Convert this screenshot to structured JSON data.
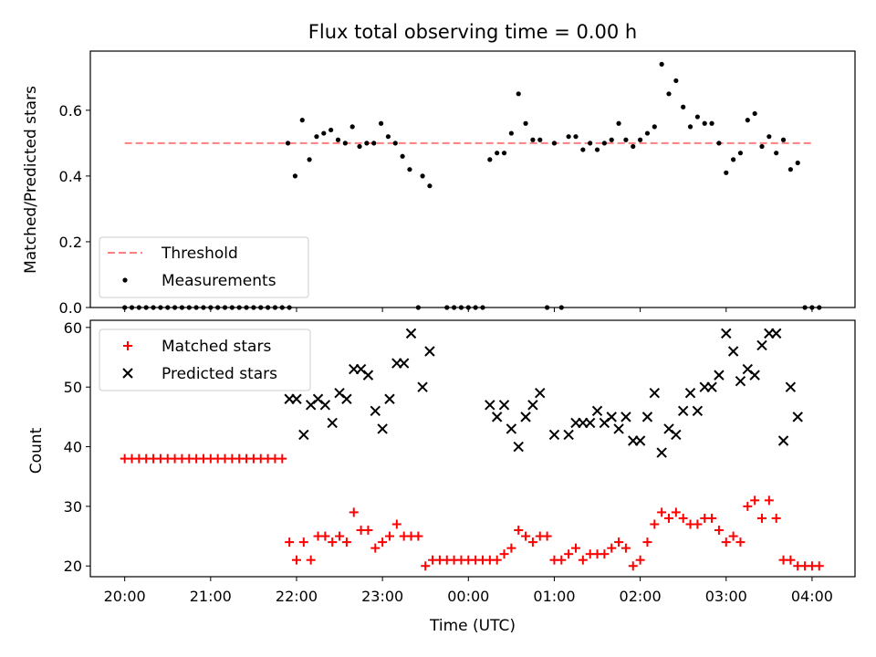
{
  "chart_data": [
    {
      "type": "scatter",
      "title": "Flux total observing time = 0.00 h",
      "xlabel": "",
      "ylabel": "Matched/Predicted stars",
      "xlim": [
        "19:36",
        "04:30"
      ],
      "ylim": [
        0,
        0.78
      ],
      "yticks": [
        "0.0",
        "0.2",
        "0.4",
        "0.6"
      ],
      "legend_position": "lower-left",
      "threshold": {
        "name": "Threshold",
        "value": 0.5,
        "x_range": [
          "20:00",
          "04:00"
        ],
        "color": "#ff7f7f"
      },
      "series": [
        {
          "name": "Measurements",
          "color": "#000000",
          "points": [
            [
              "20:00",
              0
            ],
            [
              "20:05",
              0
            ],
            [
              "20:10",
              0
            ],
            [
              "20:15",
              0
            ],
            [
              "20:20",
              0
            ],
            [
              "20:25",
              0
            ],
            [
              "20:30",
              0
            ],
            [
              "20:35",
              0
            ],
            [
              "20:40",
              0
            ],
            [
              "20:45",
              0
            ],
            [
              "20:50",
              0
            ],
            [
              "20:55",
              0
            ],
            [
              "21:00",
              0
            ],
            [
              "21:05",
              0
            ],
            [
              "21:10",
              0
            ],
            [
              "21:15",
              0
            ],
            [
              "21:20",
              0
            ],
            [
              "21:25",
              0
            ],
            [
              "21:30",
              0
            ],
            [
              "21:35",
              0
            ],
            [
              "21:40",
              0
            ],
            [
              "21:45",
              0
            ],
            [
              "21:50",
              0
            ],
            [
              "21:55",
              0
            ],
            [
              "21:54",
              0.5
            ],
            [
              "21:59",
              0.4
            ],
            [
              "22:04",
              0.57
            ],
            [
              "22:09",
              0.45
            ],
            [
              "22:14",
              0.52
            ],
            [
              "22:19",
              0.53
            ],
            [
              "22:24",
              0.54
            ],
            [
              "22:29",
              0.51
            ],
            [
              "22:34",
              0.5
            ],
            [
              "22:39",
              0.55
            ],
            [
              "22:44",
              0.49
            ],
            [
              "22:49",
              0.5
            ],
            [
              "22:54",
              0.5
            ],
            [
              "22:59",
              0.56
            ],
            [
              "23:04",
              0.52
            ],
            [
              "23:09",
              0.5
            ],
            [
              "23:14",
              0.46
            ],
            [
              "23:19",
              0.42
            ],
            [
              "23:28",
              0.4
            ],
            [
              "23:33",
              0.37
            ],
            [
              "23:25",
              0
            ],
            [
              "23:45",
              0
            ],
            [
              "23:50",
              0
            ],
            [
              "23:55",
              0
            ],
            [
              "24:00",
              0
            ],
            [
              "24:05",
              0
            ],
            [
              "24:10",
              0
            ],
            [
              "24:15",
              0.45
            ],
            [
              "24:20",
              0.47
            ],
            [
              "24:25",
              0.47
            ],
            [
              "24:30",
              0.53
            ],
            [
              "24:35",
              0.65
            ],
            [
              "24:40",
              0.56
            ],
            [
              "24:45",
              0.51
            ],
            [
              "24:50",
              0.51
            ],
            [
              "24:55",
              0
            ],
            [
              "25:00",
              0.5
            ],
            [
              "25:05",
              0
            ],
            [
              "25:10",
              0.52
            ],
            [
              "25:15",
              0.52
            ],
            [
              "25:20",
              0.48
            ],
            [
              "25:25",
              0.5
            ],
            [
              "25:30",
              0.48
            ],
            [
              "25:35",
              0.5
            ],
            [
              "25:40",
              0.51
            ],
            [
              "25:45",
              0.56
            ],
            [
              "25:50",
              0.51
            ],
            [
              "25:55",
              0.49
            ],
            [
              "26:00",
              0.51
            ],
            [
              "26:05",
              0.53
            ],
            [
              "26:10",
              0.55
            ],
            [
              "26:15",
              0.74
            ],
            [
              "26:20",
              0.65
            ],
            [
              "26:25",
              0.69
            ],
            [
              "26:30",
              0.61
            ],
            [
              "26:35",
              0.55
            ],
            [
              "26:40",
              0.58
            ],
            [
              "26:45",
              0.56
            ],
            [
              "26:50",
              0.56
            ],
            [
              "26:55",
              0.5
            ],
            [
              "27:00",
              0.41
            ],
            [
              "27:05",
              0.45
            ],
            [
              "27:10",
              0.47
            ],
            [
              "27:15",
              0.57
            ],
            [
              "27:20",
              0.59
            ],
            [
              "27:25",
              0.49
            ],
            [
              "27:30",
              0.52
            ],
            [
              "27:35",
              0.47
            ],
            [
              "27:40",
              0.51
            ],
            [
              "27:45",
              0.42
            ],
            [
              "27:50",
              0.44
            ],
            [
              "27:55",
              0
            ],
            [
              "28:00",
              0
            ],
            [
              "28:05",
              0
            ]
          ]
        }
      ]
    },
    {
      "type": "scatter",
      "title": "",
      "xlabel": "Time (UTC)",
      "ylabel": "Count",
      "xlim": [
        "19:36",
        "04:30"
      ],
      "ylim": [
        18.2,
        61.2
      ],
      "xticks": [
        "20:00",
        "21:00",
        "22:00",
        "23:00",
        "00:00",
        "01:00",
        "02:00",
        "03:00",
        "04:00"
      ],
      "yticks": [
        "20",
        "30",
        "40",
        "50",
        "60"
      ],
      "legend_position": "upper-left",
      "series": [
        {
          "name": "Matched stars",
          "marker": "+",
          "color": "#ff0000",
          "points": [
            [
              "20:00",
              38
            ],
            [
              "20:05",
              38
            ],
            [
              "20:10",
              38
            ],
            [
              "20:15",
              38
            ],
            [
              "20:20",
              38
            ],
            [
              "20:25",
              38
            ],
            [
              "20:30",
              38
            ],
            [
              "20:35",
              38
            ],
            [
              "20:40",
              38
            ],
            [
              "20:45",
              38
            ],
            [
              "20:50",
              38
            ],
            [
              "20:55",
              38
            ],
            [
              "21:00",
              38
            ],
            [
              "21:05",
              38
            ],
            [
              "21:10",
              38
            ],
            [
              "21:15",
              38
            ],
            [
              "21:20",
              38
            ],
            [
              "21:25",
              38
            ],
            [
              "21:30",
              38
            ],
            [
              "21:35",
              38
            ],
            [
              "21:40",
              38
            ],
            [
              "21:45",
              38
            ],
            [
              "21:50",
              38
            ],
            [
              "21:55",
              24
            ],
            [
              "22:00",
              21
            ],
            [
              "22:05",
              24
            ],
            [
              "22:10",
              21
            ],
            [
              "22:15",
              25
            ],
            [
              "22:20",
              25
            ],
            [
              "22:25",
              24
            ],
            [
              "22:30",
              25
            ],
            [
              "22:35",
              24
            ],
            [
              "22:40",
              29
            ],
            [
              "22:45",
              26
            ],
            [
              "22:50",
              26
            ],
            [
              "22:55",
              23
            ],
            [
              "23:00",
              24
            ],
            [
              "23:05",
              25
            ],
            [
              "23:10",
              27
            ],
            [
              "23:15",
              25
            ],
            [
              "23:20",
              25
            ],
            [
              "23:25",
              25
            ],
            [
              "23:30",
              20
            ],
            [
              "23:35",
              21
            ],
            [
              "23:40",
              21
            ],
            [
              "23:45",
              21
            ],
            [
              "23:50",
              21
            ],
            [
              "23:55",
              21
            ],
            [
              "24:00",
              21
            ],
            [
              "24:05",
              21
            ],
            [
              "24:10",
              21
            ],
            [
              "24:15",
              21
            ],
            [
              "24:20",
              21
            ],
            [
              "24:25",
              22
            ],
            [
              "24:30",
              23
            ],
            [
              "24:35",
              26
            ],
            [
              "24:40",
              25
            ],
            [
              "24:45",
              24
            ],
            [
              "24:50",
              25
            ],
            [
              "24:55",
              25
            ],
            [
              "25:00",
              21
            ],
            [
              "25:05",
              21
            ],
            [
              "25:10",
              22
            ],
            [
              "25:15",
              23
            ],
            [
              "25:20",
              21
            ],
            [
              "25:25",
              22
            ],
            [
              "25:30",
              22
            ],
            [
              "25:35",
              22
            ],
            [
              "25:40",
              23
            ],
            [
              "25:45",
              24
            ],
            [
              "25:50",
              23
            ],
            [
              "25:55",
              20
            ],
            [
              "26:00",
              21
            ],
            [
              "26:05",
              24
            ],
            [
              "26:10",
              27
            ],
            [
              "26:15",
              29
            ],
            [
              "26:20",
              28
            ],
            [
              "26:25",
              29
            ],
            [
              "26:30",
              28
            ],
            [
              "26:35",
              27
            ],
            [
              "26:40",
              27
            ],
            [
              "26:45",
              28
            ],
            [
              "26:50",
              28
            ],
            [
              "26:55",
              26
            ],
            [
              "27:00",
              24
            ],
            [
              "27:05",
              25
            ],
            [
              "27:10",
              24
            ],
            [
              "27:15",
              30
            ],
            [
              "27:20",
              31
            ],
            [
              "27:25",
              28
            ],
            [
              "27:30",
              31
            ],
            [
              "27:35",
              28
            ],
            [
              "27:40",
              21
            ],
            [
              "27:45",
              21
            ],
            [
              "27:50",
              20
            ],
            [
              "27:55",
              20
            ],
            [
              "28:00",
              20
            ],
            [
              "28:05",
              20
            ]
          ]
        },
        {
          "name": "Predicted stars",
          "marker": "x",
          "color": "#000000",
          "points": [
            [
              "21:55",
              48
            ],
            [
              "22:00",
              48
            ],
            [
              "22:05",
              42
            ],
            [
              "22:10",
              47
            ],
            [
              "22:15",
              48
            ],
            [
              "22:20",
              47
            ],
            [
              "22:25",
              44
            ],
            [
              "22:30",
              49
            ],
            [
              "22:35",
              48
            ],
            [
              "22:40",
              53
            ],
            [
              "22:45",
              53
            ],
            [
              "22:50",
              52
            ],
            [
              "22:55",
              46
            ],
            [
              "23:00",
              43
            ],
            [
              "23:05",
              48
            ],
            [
              "23:10",
              54
            ],
            [
              "23:15",
              54
            ],
            [
              "23:20",
              59
            ],
            [
              "23:28",
              50
            ],
            [
              "23:33",
              56
            ],
            [
              "24:15",
              47
            ],
            [
              "24:20",
              45
            ],
            [
              "24:25",
              47
            ],
            [
              "24:30",
              43
            ],
            [
              "24:35",
              40
            ],
            [
              "24:40",
              45
            ],
            [
              "24:45",
              47
            ],
            [
              "24:50",
              49
            ],
            [
              "25:00",
              42
            ],
            [
              "25:10",
              42
            ],
            [
              "25:15",
              44
            ],
            [
              "25:20",
              44
            ],
            [
              "25:25",
              44
            ],
            [
              "25:30",
              46
            ],
            [
              "25:35",
              44
            ],
            [
              "25:40",
              45
            ],
            [
              "25:45",
              43
            ],
            [
              "25:50",
              45
            ],
            [
              "25:55",
              41
            ],
            [
              "26:00",
              41
            ],
            [
              "26:05",
              45
            ],
            [
              "26:10",
              49
            ],
            [
              "26:15",
              39
            ],
            [
              "26:20",
              43
            ],
            [
              "26:25",
              42
            ],
            [
              "26:30",
              46
            ],
            [
              "26:35",
              49
            ],
            [
              "26:40",
              46
            ],
            [
              "26:45",
              50
            ],
            [
              "26:50",
              50
            ],
            [
              "26:55",
              52
            ],
            [
              "27:00",
              59
            ],
            [
              "27:05",
              56
            ],
            [
              "27:10",
              51
            ],
            [
              "27:15",
              53
            ],
            [
              "27:20",
              52
            ],
            [
              "27:25",
              57
            ],
            [
              "27:30",
              59
            ],
            [
              "27:35",
              59
            ],
            [
              "27:40",
              41
            ],
            [
              "27:45",
              50
            ],
            [
              "27:50",
              45
            ]
          ]
        }
      ]
    }
  ]
}
